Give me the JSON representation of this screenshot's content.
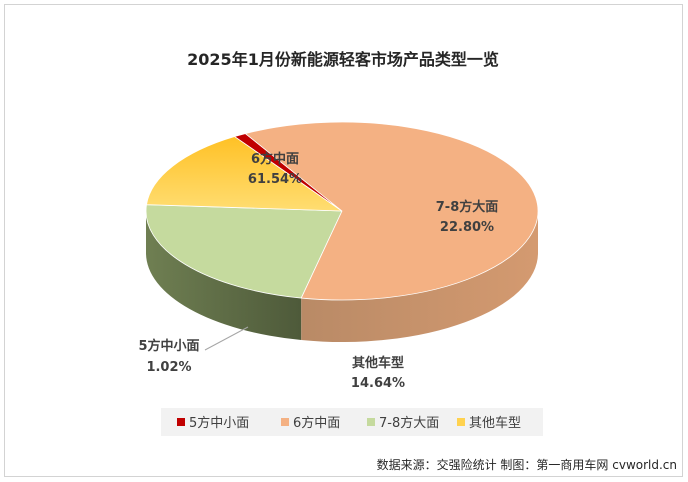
{
  "chart_data": {
    "type": "pie",
    "title": "2025年1月份新能源轻客市场产品类型一览",
    "categories": [
      "5方中小面",
      "6方中面",
      "7-8方大面",
      "其他车型"
    ],
    "values": [
      1.02,
      61.54,
      22.8,
      14.64
    ],
    "value_labels": [
      "1.02%",
      "61.54%",
      "22.80%",
      "14.64%"
    ],
    "colors": [
      "#C00000",
      "#F4B183",
      "#C5DA9E",
      "#FFD24F"
    ],
    "legend": {
      "placement": "bottom",
      "entries": [
        "5方中小面",
        "6方中面",
        "7-8方大面",
        "其他车型"
      ]
    },
    "style": "3d-pie"
  },
  "source_note": "数据来源：交强险统计  制图：第一商用车网 cvworld.cn"
}
